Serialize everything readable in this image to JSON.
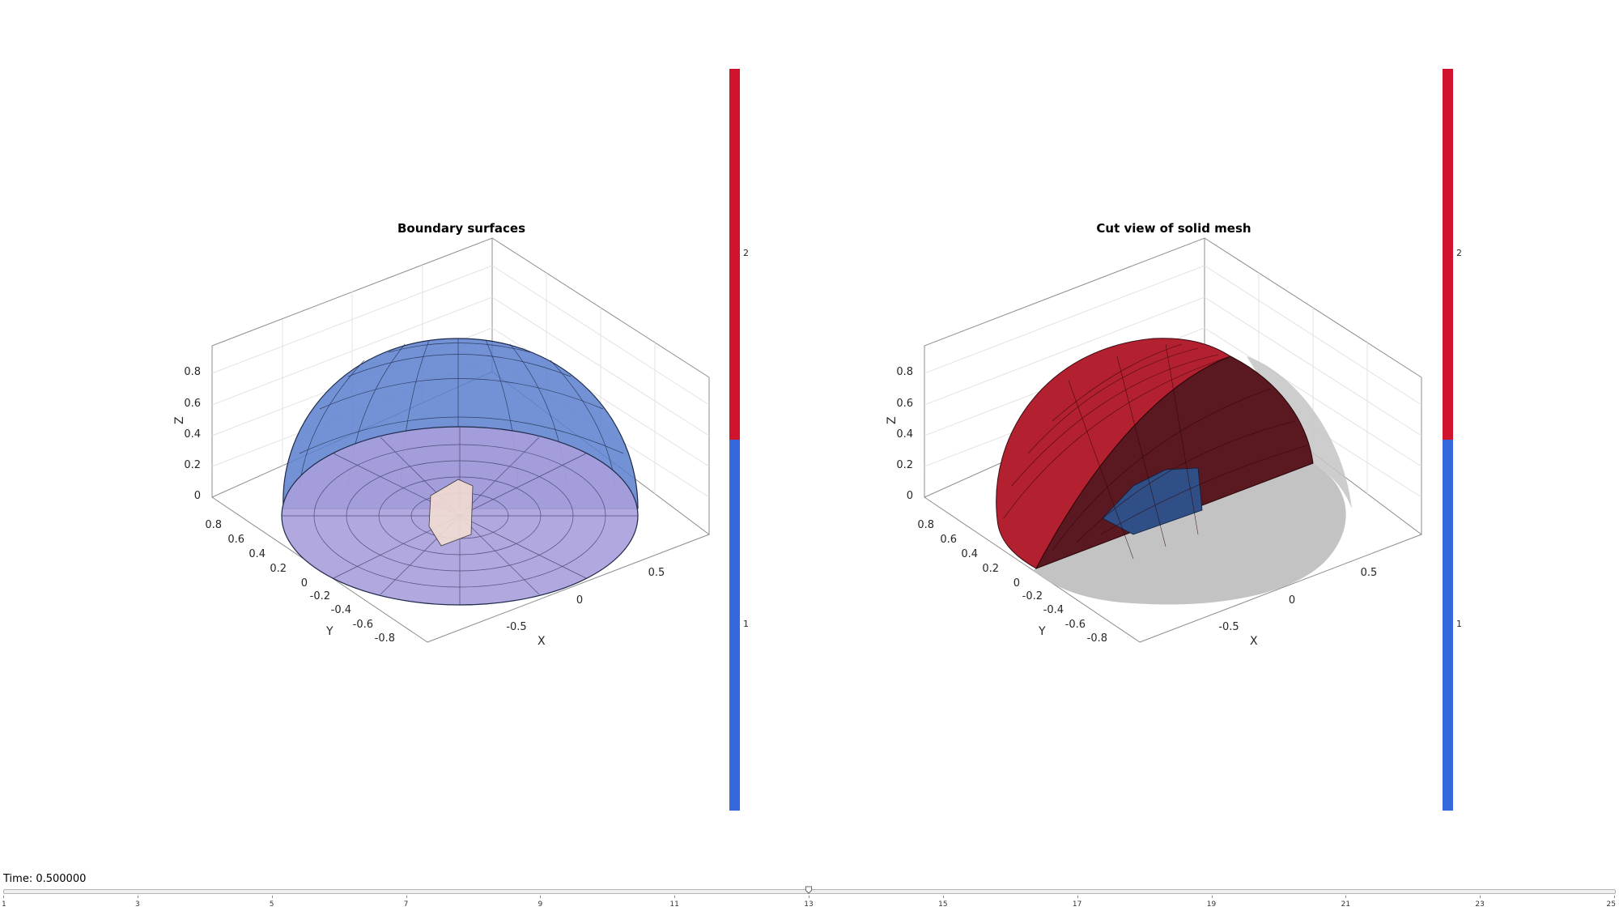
{
  "panels": [
    {
      "title": "Boundary surfaces",
      "zticks": [
        "0",
        "0.2",
        "0.4",
        "0.6",
        "0.8"
      ],
      "yticks": [
        "0.8",
        "0.6",
        "0.4",
        "0.2",
        "0",
        "-0.2",
        "-0.4",
        "-0.6",
        "-0.8"
      ],
      "xticks": [
        "-0.5",
        "0",
        "0.5"
      ],
      "xlabel": "X",
      "ylabel": "Y",
      "zlabel": "Z"
    },
    {
      "title": "Cut view of solid mesh",
      "zticks": [
        "0",
        "0.2",
        "0.4",
        "0.6",
        "0.8"
      ],
      "yticks": [
        "0.8",
        "0.6",
        "0.4",
        "0.2",
        "0",
        "-0.2",
        "-0.4",
        "-0.6",
        "-0.8"
      ],
      "xticks": [
        "-0.5",
        "0",
        "0.5"
      ],
      "xlabel": "X",
      "ylabel": "Y",
      "zlabel": "Z"
    }
  ],
  "colorbars": [
    {
      "labels": [
        "2",
        "1"
      ],
      "colors": {
        "upper": "#d0142e",
        "lower": "#3468dc"
      }
    },
    {
      "labels": [
        "2",
        "1"
      ],
      "colors": {
        "upper": "#d0142e",
        "lower": "#3468dc"
      }
    }
  ],
  "colors": {
    "dome": "#5b7fcf",
    "base": "#9a8fd6",
    "cut_red": "#a3202c",
    "cut_blue": "#2f4f86",
    "shadow": "#bdbdbd"
  },
  "time": {
    "label": "Time: 0.500000"
  },
  "slider": {
    "value_fraction": 0.5,
    "tick_labels": [
      "1",
      "3",
      "5",
      "7",
      "9",
      "11",
      "13",
      "15",
      "17",
      "19",
      "21",
      "23",
      "25"
    ]
  }
}
